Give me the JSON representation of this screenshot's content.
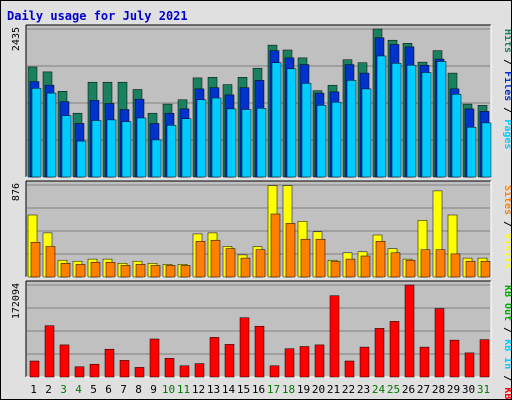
{
  "chart_data": [
    {
      "type": "bar",
      "title": "Daily usage for July 2021",
      "max_label": "2435",
      "ylim": [
        0,
        2435
      ],
      "legend": [
        {
          "label": "Pages",
          "color": "#00ccff"
        },
        {
          "label": "Files",
          "color": "#0033cc"
        },
        {
          "label": "Hits",
          "color": "#1a8060"
        }
      ],
      "legend_separator": " / ",
      "legend_placement": "right",
      "categories": [
        "1",
        "2",
        "3",
        "4",
        "5",
        "6",
        "7",
        "8",
        "9",
        "10",
        "11",
        "12",
        "13",
        "14",
        "15",
        "16",
        "17",
        "18",
        "19",
        "20",
        "21",
        "22",
        "23",
        "24",
        "25",
        "26",
        "27",
        "28",
        "29",
        "30",
        "31"
      ],
      "weekend_days": [
        "3",
        "4",
        "10",
        "11",
        "17",
        "18",
        "24",
        "25",
        "31"
      ],
      "colors": {
        "weekday_label": "#000000",
        "weekend_label": "#007700",
        "panel_bg": "#c0c0c0",
        "gridline": "#7f7f7f"
      },
      "series": [
        {
          "name": "Hits",
          "values": [
            1810,
            1730,
            1410,
            1050,
            1560,
            1560,
            1560,
            1440,
            1050,
            1200,
            1270,
            1630,
            1640,
            1520,
            1640,
            1790,
            2170,
            2090,
            1960,
            1420,
            1510,
            1930,
            1880,
            2435,
            2250,
            2200,
            1890,
            2080,
            1710,
            1200,
            1180
          ]
        },
        {
          "name": "Files",
          "values": [
            1570,
            1510,
            1240,
            880,
            1260,
            1210,
            1110,
            1280,
            880,
            1050,
            1120,
            1450,
            1470,
            1350,
            1470,
            1590,
            2080,
            1960,
            1850,
            1380,
            1400,
            1850,
            1710,
            2290,
            2180,
            2140,
            1840,
            1940,
            1450,
            1120,
            1080
          ]
        },
        {
          "name": "Pages",
          "values": [
            1460,
            1380,
            1010,
            590,
            930,
            940,
            910,
            970,
            610,
            850,
            960,
            1270,
            1300,
            1120,
            1110,
            1130,
            1880,
            1780,
            1540,
            1180,
            1230,
            1590,
            1450,
            1990,
            1870,
            1840,
            1720,
            1900,
            1360,
            820,
            890
          ]
        }
      ]
    },
    {
      "type": "bar",
      "max_label": "876",
      "ylim": [
        0,
        876
      ],
      "legend": [
        {
          "label": "Visits",
          "color": "#ffff00"
        },
        {
          "label": "Sites",
          "color": "#ff8000"
        }
      ],
      "legend_separator": " / ",
      "legend_placement": "right",
      "categories": [
        "1",
        "2",
        "3",
        "4",
        "5",
        "6",
        "7",
        "8",
        "9",
        "10",
        "11",
        "12",
        "13",
        "14",
        "15",
        "16",
        "17",
        "18",
        "19",
        "20",
        "21",
        "22",
        "23",
        "24",
        "25",
        "26",
        "27",
        "28",
        "29",
        "30",
        "31"
      ],
      "series": [
        {
          "name": "Visits",
          "values": [
            590,
            420,
            160,
            150,
            170,
            170,
            130,
            150,
            130,
            120,
            120,
            410,
            420,
            290,
            210,
            290,
            870,
            870,
            530,
            430,
            160,
            230,
            240,
            400,
            270,
            170,
            540,
            820,
            590,
            180,
            180
          ]
        },
        {
          "name": "Sites",
          "values": [
            330,
            290,
            130,
            120,
            140,
            140,
            110,
            120,
            110,
            110,
            110,
            340,
            350,
            270,
            180,
            260,
            600,
            510,
            360,
            360,
            150,
            170,
            200,
            340,
            230,
            160,
            260,
            260,
            220,
            150,
            150
          ]
        }
      ]
    },
    {
      "type": "bar",
      "max_label": "172094",
      "ylim": [
        0,
        172094
      ],
      "legend": [
        {
          "label": "KB F",
          "color": "#ff0000"
        },
        {
          "label": "KB In",
          "color": "#00ccff"
        },
        {
          "label": "KB Out",
          "color": "#00aa00"
        }
      ],
      "legend_separator": " / ",
      "legend_placement": "right",
      "categories": [
        "1",
        "2",
        "3",
        "4",
        "5",
        "6",
        "7",
        "8",
        "9",
        "10",
        "11",
        "12",
        "13",
        "14",
        "15",
        "16",
        "17",
        "18",
        "19",
        "20",
        "21",
        "22",
        "23",
        "24",
        "25",
        "26",
        "27",
        "28",
        "29",
        "30",
        "31"
      ],
      "series": [
        {
          "name": "KB F",
          "values": [
            30000,
            96000,
            60000,
            19000,
            24000,
            52000,
            31000,
            18000,
            71000,
            35000,
            21000,
            25000,
            74000,
            61000,
            111000,
            95000,
            21000,
            53000,
            57000,
            60000,
            152000,
            30000,
            56000,
            91000,
            104000,
            172094,
            56000,
            128000,
            69000,
            45000,
            70000
          ]
        }
      ]
    }
  ]
}
